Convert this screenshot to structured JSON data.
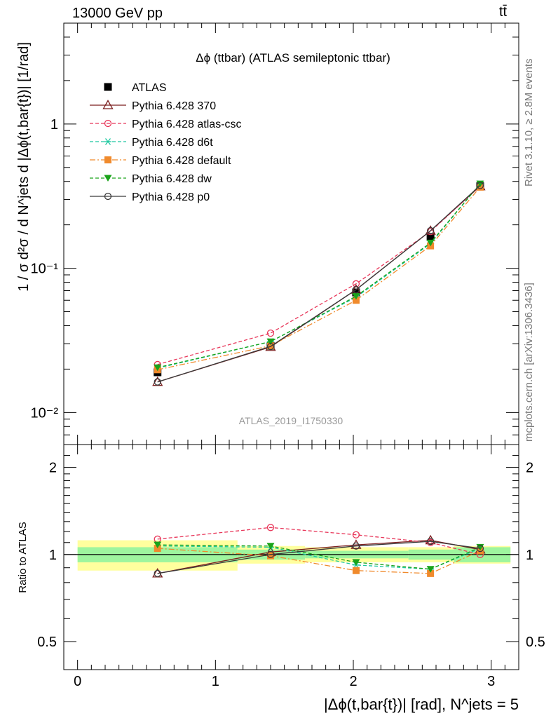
{
  "header": {
    "energy_label": "13000 GeV pp",
    "process_label": "tt̄"
  },
  "side_text": {
    "rivet": "Rivet 3.1.10, ≥ 2.8M events",
    "mcplots": "mcplots.cern.ch [arXiv:1306.3436]"
  },
  "chart_data": {
    "type": "line",
    "title": "Δϕ (ttbar) (ATLAS semileptonic ttbar)",
    "watermark": "ATLAS_2019_I1750330",
    "xlabel": "|Δϕ(t,bar{t})| [rad], N^jets = 5",
    "ylabel": "1 / σ d²σ / d N^jets d |Δϕ(t,bar{t})| [1/rad]",
    "ratio_ylabel": "Ratio to ATLAS",
    "xlim": [
      -0.1,
      3.2
    ],
    "ylim": [
      0.006,
      5
    ],
    "y_scale": "log",
    "ratio_ylim": [
      0.4,
      2.4
    ],
    "x_ticks": [
      "0",
      "1",
      "2",
      "3"
    ],
    "y_ticks": [
      "10⁻²",
      "10⁻¹",
      "1"
    ],
    "ratio_ticks": [
      "0.5",
      "1",
      "2"
    ],
    "legend_position": "top-left",
    "x": [
      0.58,
      1.4,
      2.02,
      2.56,
      2.92
    ],
    "bins": [
      [
        0,
        1.16
      ],
      [
        1.16,
        1.65
      ],
      [
        1.65,
        2.4
      ],
      [
        2.4,
        2.73
      ],
      [
        2.73,
        3.14
      ]
    ],
    "data": {
      "name": "ATLAS",
      "values": [
        0.019,
        0.029,
        0.068,
        0.165,
        0.37
      ],
      "ratio_band_inner": [
        0.06,
        0.04,
        0.03,
        0.04,
        0.06
      ],
      "ratio_band_outer": [
        0.12,
        0.07,
        0.06,
        0.06,
        0.07
      ]
    },
    "series": [
      {
        "name": "Pythia 6.428 370",
        "color": "#7b1f1f",
        "marker": "triangle-open",
        "dash": "solid",
        "values": [
          0.0163,
          0.0285,
          0.071,
          0.182,
          0.37
        ],
        "ratio": [
          0.86,
          1.02,
          1.08,
          1.12,
          1.04
        ]
      },
      {
        "name": "Pythia 6.428 atlas-csc",
        "color": "#e8375a",
        "marker": "circle-open",
        "dash": "dash",
        "values": [
          0.0215,
          0.0355,
          0.078,
          0.18,
          0.37
        ],
        "ratio": [
          1.13,
          1.24,
          1.17,
          1.1,
          1.0
        ]
      },
      {
        "name": "Pythia 6.428 d6t",
        "color": "#1ec8a0",
        "marker": "asterisk",
        "dash": "dash",
        "values": [
          0.0203,
          0.031,
          0.063,
          0.148,
          0.385
        ],
        "ratio": [
          1.07,
          1.06,
          0.92,
          0.89,
          1.05
        ]
      },
      {
        "name": "Pythia 6.428 default",
        "color": "#f08a2c",
        "marker": "square",
        "dash": "dashdot",
        "values": [
          0.0198,
          0.029,
          0.06,
          0.143,
          0.365
        ],
        "ratio": [
          1.05,
          0.99,
          0.88,
          0.86,
          1.03
        ]
      },
      {
        "name": "Pythia 6.428 dw",
        "color": "#1aa31a",
        "marker": "triangle-down",
        "dash": "dash",
        "values": [
          0.0205,
          0.031,
          0.064,
          0.15,
          0.385
        ],
        "ratio": [
          1.08,
          1.07,
          0.94,
          0.89,
          1.06
        ]
      },
      {
        "name": "Pythia 6.428 p0",
        "color": "#3a3a3a",
        "marker": "circle-open",
        "dash": "solid",
        "values": [
          0.0163,
          0.0287,
          0.071,
          0.182,
          0.375
        ],
        "ratio": [
          0.86,
          1.0,
          1.07,
          1.11,
          1.05
        ]
      }
    ]
  }
}
